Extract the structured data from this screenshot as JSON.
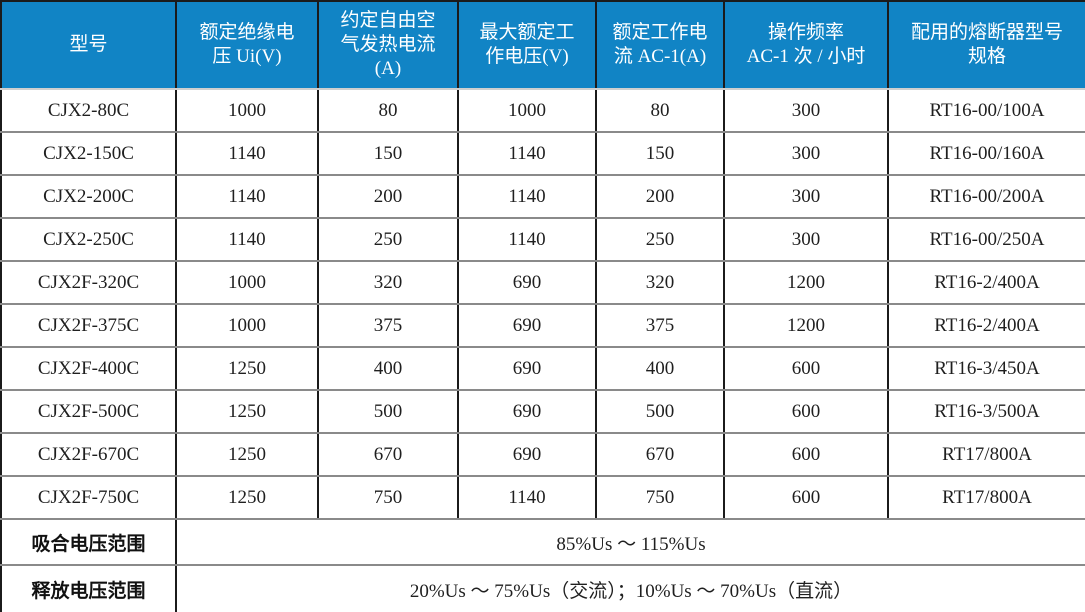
{
  "colors": {
    "header_bg": "#1184C5",
    "header_text": "#ffffff",
    "body_text": "#1f1f1f",
    "grid_vertical": "#1b1b1b",
    "grid_horizontal": "#8a8a8a"
  },
  "table": {
    "headers": [
      "型号",
      "额定绝缘电\n压 Ui(V)",
      "约定自由空\n气发热电流\n(A)",
      "最大额定工\n作电压(V)",
      "额定工作电\n流 AC-1(A)",
      "操作频率\nAC-1 次 / 小时",
      "配用的熔断器型号\n规格"
    ],
    "rows": [
      [
        "CJX2-80C",
        "1000",
        "80",
        "1000",
        "80",
        "300",
        "RT16-00/100A"
      ],
      [
        "CJX2-150C",
        "1140",
        "150",
        "1140",
        "150",
        "300",
        "RT16-00/160A"
      ],
      [
        "CJX2-200C",
        "1140",
        "200",
        "1140",
        "200",
        "300",
        "RT16-00/200A"
      ],
      [
        "CJX2-250C",
        "1140",
        "250",
        "1140",
        "250",
        "300",
        "RT16-00/250A"
      ],
      [
        "CJX2F-320C",
        "1000",
        "320",
        "690",
        "320",
        "1200",
        "RT16-2/400A"
      ],
      [
        "CJX2F-375C",
        "1000",
        "375",
        "690",
        "375",
        "1200",
        "RT16-2/400A"
      ],
      [
        "CJX2F-400C",
        "1250",
        "400",
        "690",
        "400",
        "600",
        "RT16-3/450A"
      ],
      [
        "CJX2F-500C",
        "1250",
        "500",
        "690",
        "500",
        "600",
        "RT16-3/500A"
      ],
      [
        "CJX2F-670C",
        "1250",
        "670",
        "690",
        "670",
        "600",
        "RT17/800A"
      ],
      [
        "CJX2F-750C",
        "1250",
        "750",
        "1140",
        "750",
        "600",
        "RT17/800A"
      ]
    ],
    "footer_rows": [
      {
        "label": "吸合电压范围",
        "value": "85%Us ～ 115%Us"
      },
      {
        "label": "释放电压范围",
        "value": "20%Us ～ 75%Us（交流）；10%Us ～ 70%Us（直流）"
      }
    ]
  }
}
